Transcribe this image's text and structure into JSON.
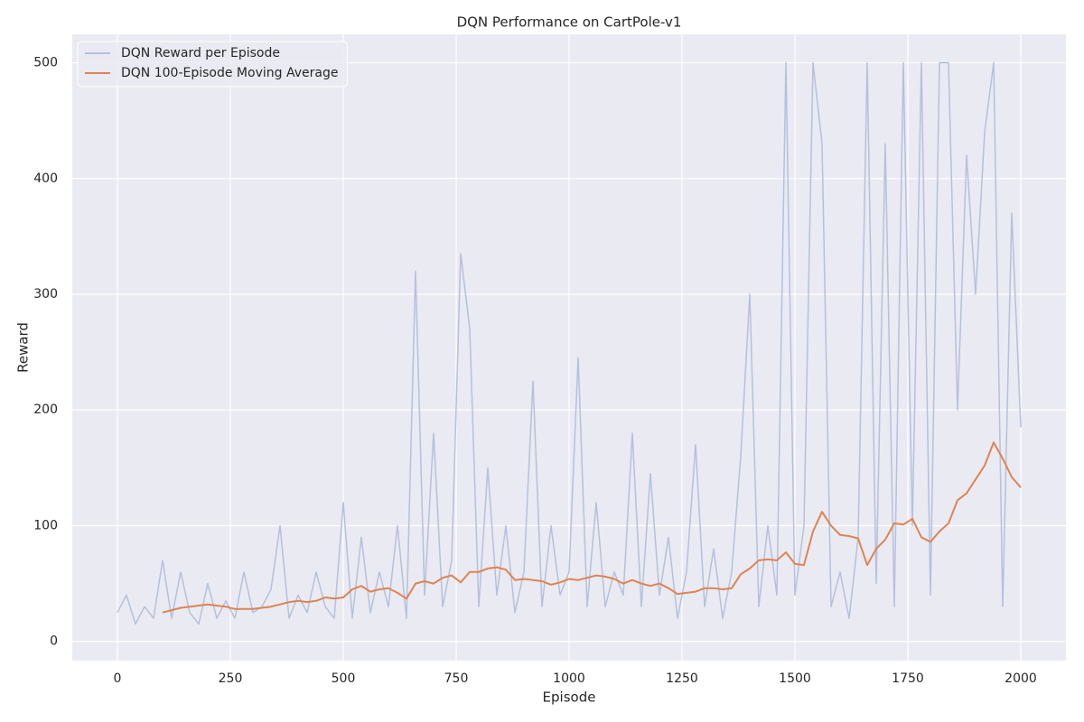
{
  "chart_data": {
    "type": "line",
    "title": "DQN Performance on CartPole-v1",
    "x_label": "Episode",
    "y_label": "Reward",
    "x": [
      0,
      20,
      40,
      60,
      80,
      100,
      120,
      140,
      160,
      180,
      200,
      220,
      240,
      260,
      280,
      300,
      320,
      340,
      360,
      380,
      400,
      420,
      440,
      460,
      480,
      500,
      520,
      540,
      560,
      580,
      600,
      620,
      640,
      660,
      680,
      700,
      720,
      740,
      760,
      780,
      800,
      820,
      840,
      860,
      880,
      900,
      920,
      940,
      960,
      980,
      1000,
      1020,
      1040,
      1060,
      1080,
      1100,
      1120,
      1140,
      1160,
      1180,
      1200,
      1220,
      1240,
      1260,
      1280,
      1300,
      1320,
      1340,
      1360,
      1380,
      1400,
      1420,
      1440,
      1460,
      1480,
      1500,
      1520,
      1540,
      1560,
      1580,
      1600,
      1620,
      1640,
      1660,
      1680,
      1700,
      1720,
      1740,
      1760,
      1780,
      1800,
      1820,
      1840,
      1860,
      1880,
      1900,
      1920,
      1940,
      1960,
      1980,
      2000
    ],
    "series": [
      {
        "name": "DQN Reward per Episode",
        "color": "#b4c1dd",
        "values": [
          25,
          40,
          15,
          30,
          20,
          70,
          20,
          60,
          25,
          15,
          50,
          20,
          35,
          20,
          60,
          25,
          30,
          45,
          100,
          20,
          40,
          25,
          60,
          30,
          20,
          120,
          20,
          90,
          25,
          60,
          30,
          100,
          20,
          320,
          40,
          180,
          30,
          70,
          335,
          270,
          30,
          150,
          40,
          100,
          25,
          60,
          225,
          30,
          100,
          40,
          60,
          245,
          30,
          120,
          30,
          60,
          40,
          180,
          30,
          145,
          40,
          90,
          20,
          60,
          170,
          30,
          80,
          20,
          60,
          160,
          300,
          30,
          100,
          40,
          500,
          40,
          100,
          500,
          430,
          30,
          60,
          20,
          90,
          500,
          50,
          430,
          30,
          500,
          100,
          500,
          40,
          500,
          500,
          200,
          420,
          300,
          440,
          500,
          30,
          370,
          185
        ]
      },
      {
        "name": "DQN 100-Episode Moving Average",
        "color": "#dd8452",
        "values": [
          null,
          null,
          null,
          null,
          null,
          25,
          27,
          29,
          30,
          31,
          32,
          31,
          30,
          28,
          28,
          28,
          29,
          30,
          32,
          34,
          35,
          34,
          35,
          38,
          37,
          38,
          45,
          48,
          43,
          45,
          46,
          42,
          37,
          50,
          52,
          50,
          55,
          57,
          51,
          60,
          60,
          63,
          64,
          62,
          53,
          54,
          53,
          52,
          49,
          51,
          54,
          53,
          55,
          57,
          56,
          54,
          50,
          53,
          50,
          48,
          50,
          46,
          41,
          42,
          43,
          46,
          46,
          45,
          46,
          58,
          63,
          70,
          71,
          70,
          77,
          67,
          66,
          95,
          112,
          100,
          92,
          91,
          89,
          66,
          80,
          88,
          102,
          101,
          106,
          90,
          86,
          95,
          102,
          122,
          128,
          140,
          152,
          172,
          158,
          142,
          133
        ]
      }
    ],
    "xlim": [
      -100,
      2100
    ],
    "ylim": [
      -16.6,
      524.6
    ],
    "xticks": [
      0,
      250,
      500,
      750,
      1000,
      1250,
      1500,
      1750,
      2000
    ],
    "yticks": [
      0,
      100,
      200,
      300,
      400,
      500
    ],
    "grid": true,
    "legend": "upper left"
  }
}
